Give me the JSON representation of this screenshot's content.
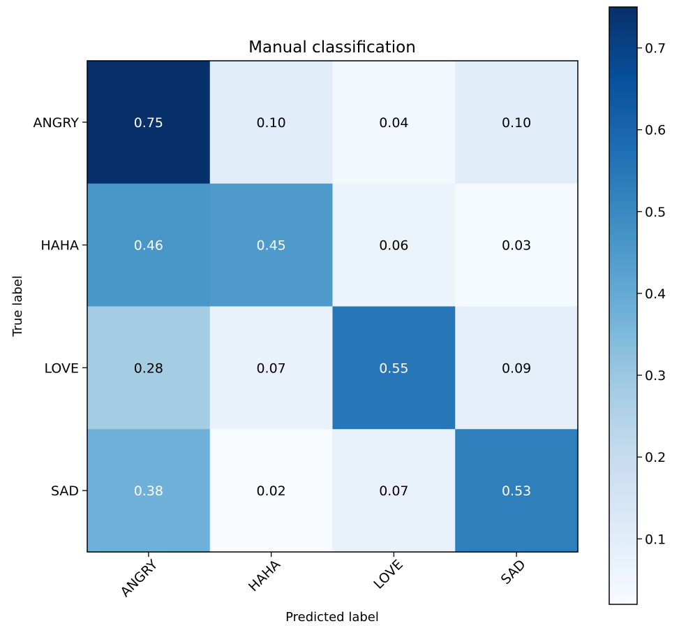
{
  "chart_data": {
    "type": "heatmap",
    "title": "Manual classification",
    "xlabel": "Predicted label",
    "ylabel": "True label",
    "x_categories": [
      "ANGRY",
      "HAHA",
      "LOVE",
      "SAD"
    ],
    "y_categories": [
      "ANGRY",
      "HAHA",
      "LOVE",
      "SAD"
    ],
    "values": [
      [
        0.75,
        0.1,
        0.04,
        0.1
      ],
      [
        0.46,
        0.45,
        0.06,
        0.03
      ],
      [
        0.28,
        0.07,
        0.55,
        0.09
      ],
      [
        0.38,
        0.02,
        0.07,
        0.53
      ]
    ],
    "value_labels": [
      [
        "0.75",
        "0.10",
        "0.04",
        "0.10"
      ],
      [
        "0.46",
        "0.45",
        "0.06",
        "0.03"
      ],
      [
        "0.28",
        "0.07",
        "0.55",
        "0.09"
      ],
      [
        "0.38",
        "0.02",
        "0.07",
        "0.53"
      ]
    ],
    "colormap": "Blues",
    "colorbar": {
      "range": [
        0.02,
        0.75
      ],
      "ticks": [
        0.1,
        0.2,
        0.3,
        0.4,
        0.5,
        0.6,
        0.7
      ],
      "tick_labels": [
        "0.1",
        "0.2",
        "0.3",
        "0.4",
        "0.5",
        "0.6",
        "0.7"
      ]
    },
    "text_color_threshold": 0.375,
    "text_colors": {
      "dark": "#000000",
      "light": "#ffffff"
    }
  }
}
